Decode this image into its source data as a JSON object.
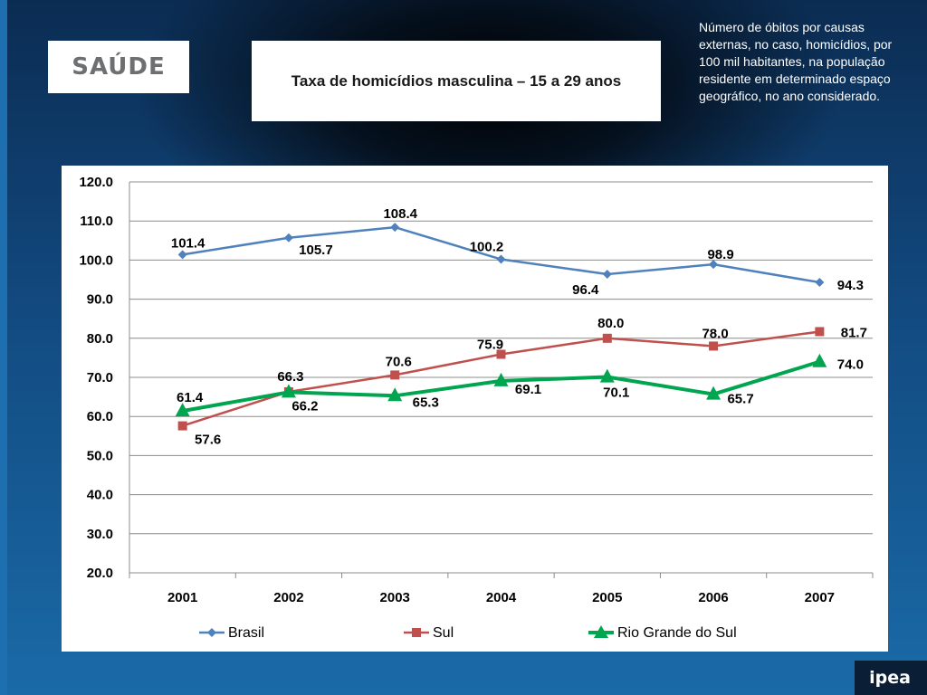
{
  "header": {
    "section_label": "SAÚDE",
    "chart_title": "Taxa de homicídios masculina – 15 a 29 anos",
    "description": "Número de óbitos por causas externas, no caso, homicídios, por 100 mil habitantes, na população residente em determinado espaço geográfico, no ano considerado."
  },
  "footer": {
    "logo_text": "ipea"
  },
  "colors": {
    "brasil": "#4f81bd",
    "sul": "#c0504d",
    "rgs": "#00a550",
    "background": "#124a80"
  },
  "chart_data": {
    "type": "line",
    "title": "Taxa de homicídios masculina – 15 a 29 anos",
    "x": [
      "2001",
      "2002",
      "2003",
      "2004",
      "2005",
      "2006",
      "2007"
    ],
    "ylim": [
      20,
      120
    ],
    "yticks": [
      "120.0",
      "110.0",
      "100.0",
      "90.0",
      "80.0",
      "70.0",
      "60.0",
      "50.0",
      "40.0",
      "30.0",
      "20.0"
    ],
    "grid": true,
    "legend_position": "bottom",
    "series": [
      {
        "name": "Brasil",
        "marker": "diamond",
        "values": [
          101.4,
          105.7,
          108.4,
          100.2,
          96.4,
          98.9,
          94.3
        ],
        "labels": [
          "101.4",
          "105.7",
          "108.4",
          "100.2",
          "96.4",
          "98.9",
          "94.3"
        ]
      },
      {
        "name": "Sul",
        "marker": "square",
        "values": [
          57.6,
          66.3,
          70.6,
          75.9,
          80.0,
          78.0,
          81.7
        ],
        "labels": [
          "57.6",
          "66.3",
          "70.6",
          "75.9",
          "80.0",
          "78.0",
          "81.7"
        ]
      },
      {
        "name": "Rio Grande do Sul",
        "marker": "triangle",
        "values": [
          61.4,
          66.2,
          65.3,
          69.1,
          70.1,
          65.7,
          74.0
        ],
        "labels": [
          "61.4",
          "66.2",
          "65.3",
          "69.1",
          "70.1",
          "65.7",
          "74.0"
        ]
      }
    ]
  }
}
